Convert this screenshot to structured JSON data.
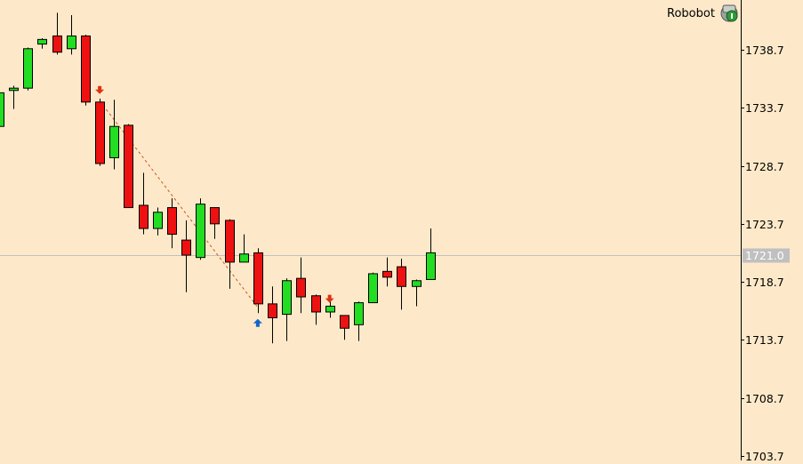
{
  "chart_data": {
    "type": "candlestick",
    "bullish_color": "#22dd22",
    "bearish_color": "#ee1111",
    "wick_color": "#000000",
    "background": "#fde9c9",
    "y_axis": {
      "ticks": [
        1738.7,
        1733.7,
        1728.7,
        1723.7,
        1718.7,
        1713.7,
        1708.7,
        1703.7
      ],
      "tick_labels": [
        "1738.7",
        "1733.7",
        "1728.7",
        "1723.7",
        "1718.7",
        "1713.7",
        "1708.7",
        "1703.7"
      ],
      "ylim": [
        1703.3,
        1743.0
      ]
    },
    "current_price": {
      "value": 1721.0,
      "label": "1721.0",
      "line_color": "#c0c0c0",
      "label_bg": "#c0c0c0",
      "label_color": "#ffffff"
    },
    "candles": [
      {
        "o": 1732.1,
        "h": 1735.0,
        "l": 1732.0,
        "c": 1735.0
      },
      {
        "o": 1735.2,
        "h": 1735.6,
        "l": 1733.6,
        "c": 1735.4
      },
      {
        "o": 1735.4,
        "h": 1738.9,
        "l": 1735.2,
        "c": 1738.8
      },
      {
        "o": 1739.2,
        "h": 1739.7,
        "l": 1738.8,
        "c": 1739.6
      },
      {
        "o": 1739.9,
        "h": 1741.9,
        "l": 1738.3,
        "c": 1738.5
      },
      {
        "o": 1738.8,
        "h": 1741.7,
        "l": 1738.3,
        "c": 1739.9
      },
      {
        "o": 1739.9,
        "h": 1740.0,
        "l": 1733.9,
        "c": 1734.2
      },
      {
        "o": 1734.2,
        "h": 1734.5,
        "l": 1728.7,
        "c": 1728.9
      },
      {
        "o": 1729.4,
        "h": 1734.4,
        "l": 1728.4,
        "c": 1732.1
      },
      {
        "o": 1732.2,
        "h": 1732.3,
        "l": 1725.1,
        "c": 1725.1
      },
      {
        "o": 1725.3,
        "h": 1728.1,
        "l": 1722.8,
        "c": 1723.3
      },
      {
        "o": 1723.3,
        "h": 1725.1,
        "l": 1722.7,
        "c": 1724.7
      },
      {
        "o": 1725.1,
        "h": 1725.9,
        "l": 1721.6,
        "c": 1722.8
      },
      {
        "o": 1722.3,
        "h": 1724.0,
        "l": 1717.8,
        "c": 1721.0
      },
      {
        "o": 1720.8,
        "h": 1725.9,
        "l": 1720.6,
        "c": 1725.4
      },
      {
        "o": 1725.1,
        "h": 1725.1,
        "l": 1722.4,
        "c": 1723.7
      },
      {
        "o": 1724.0,
        "h": 1724.1,
        "l": 1718.1,
        "c": 1720.4
      },
      {
        "o": 1720.4,
        "h": 1722.8,
        "l": 1720.4,
        "c": 1721.1
      },
      {
        "o": 1721.2,
        "h": 1721.6,
        "l": 1716.0,
        "c": 1716.8
      },
      {
        "o": 1716.8,
        "h": 1718.3,
        "l": 1713.4,
        "c": 1715.6
      },
      {
        "o": 1715.9,
        "h": 1719.0,
        "l": 1713.6,
        "c": 1718.8
      },
      {
        "o": 1719.0,
        "h": 1720.8,
        "l": 1716.0,
        "c": 1717.4
      },
      {
        "o": 1717.5,
        "h": 1717.6,
        "l": 1715.0,
        "c": 1716.1
      },
      {
        "o": 1716.1,
        "h": 1717.3,
        "l": 1715.6,
        "c": 1716.6
      },
      {
        "o": 1715.8,
        "h": 1715.8,
        "l": 1713.7,
        "c": 1714.7
      },
      {
        "o": 1715.0,
        "h": 1717.0,
        "l": 1713.6,
        "c": 1716.9
      },
      {
        "o": 1716.9,
        "h": 1719.5,
        "l": 1716.9,
        "c": 1719.4
      },
      {
        "o": 1719.6,
        "h": 1720.8,
        "l": 1718.3,
        "c": 1719.1
      },
      {
        "o": 1720.0,
        "h": 1720.7,
        "l": 1716.3,
        "c": 1718.3
      },
      {
        "o": 1718.3,
        "h": 1718.9,
        "l": 1716.6,
        "c": 1718.8
      },
      {
        "o": 1718.9,
        "h": 1723.3,
        "l": 1718.9,
        "c": 1721.2
      }
    ],
    "trendline": {
      "from": {
        "candle": 7,
        "value": 1734.3
      },
      "to": {
        "candle": 18,
        "value": 1716.5
      },
      "color": "#cc5522",
      "style": "dashed"
    },
    "markers": [
      {
        "candle": 7,
        "value": 1735.2,
        "shape": "arrow-down",
        "color": "#dd3311"
      },
      {
        "candle": 18,
        "value": 1715.2,
        "shape": "arrow-up",
        "color": "#1166cc"
      },
      {
        "candle": 23,
        "value": 1717.2,
        "shape": "arrow-down",
        "color": "#dd3311"
      }
    ]
  },
  "header": {
    "brand_label": "Robobot",
    "brand_icon": "robot-icon"
  }
}
